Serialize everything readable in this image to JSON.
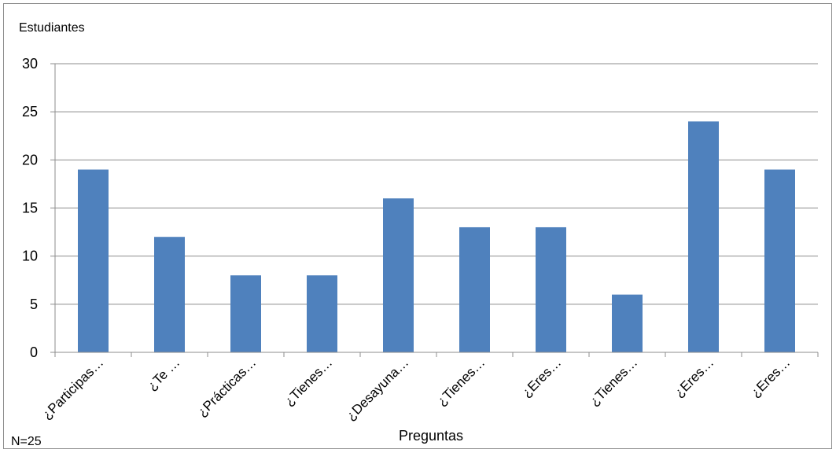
{
  "chart_data": {
    "type": "bar",
    "categories": [
      "¿Participas…",
      "¿Te …",
      "¿Prácticas…",
      "¿Tienes…",
      "¿Desayuna…",
      "¿Tienes…",
      "¿Eres…",
      "¿Tienes…",
      "¿Eres…",
      "¿Eres…"
    ],
    "values": [
      19,
      12,
      8,
      8,
      16,
      13,
      13,
      6,
      24,
      19
    ],
    "ylabel": "Estudiantes",
    "xlabel": "Preguntas",
    "ylim": [
      0,
      30
    ],
    "yticks": [
      0,
      5,
      10,
      15,
      20,
      25,
      30
    ],
    "grid": true,
    "bar_color": "#4f81bd",
    "note": "N=25"
  }
}
